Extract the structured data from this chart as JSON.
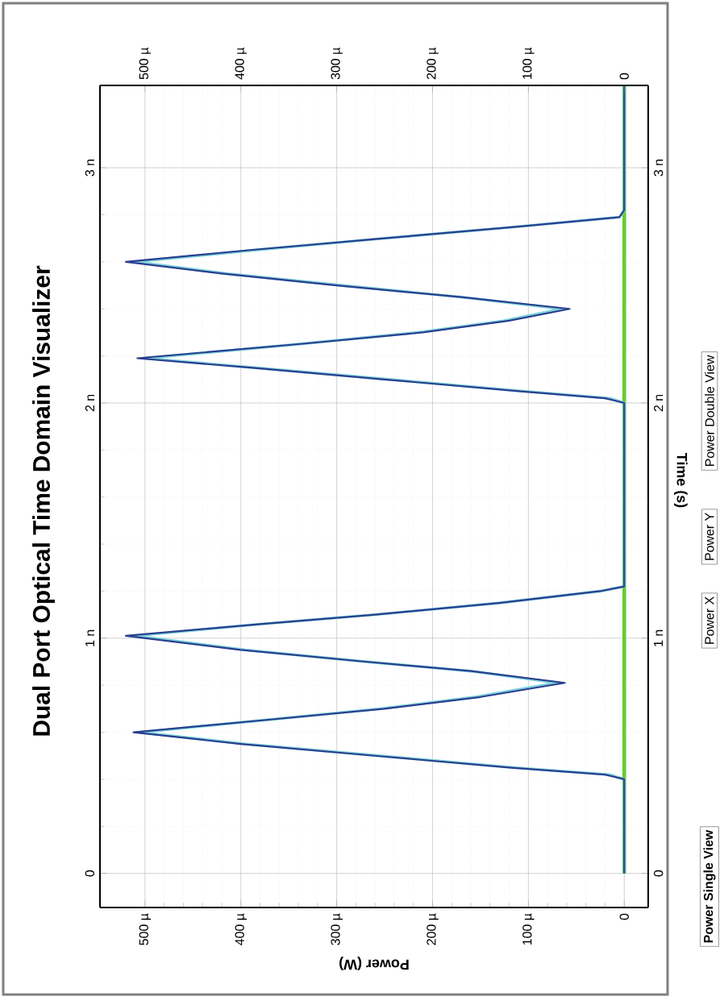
{
  "chart_data": {
    "type": "line",
    "title": "Dual Port Optical Time Domain Visualizer",
    "xlabel": "Power (W)",
    "y2label": "Time (s)",
    "xlim": [
      547,
      -25
    ],
    "xticks": [
      {
        "value": 0,
        "label": "0"
      },
      {
        "value": 100,
        "label": "100 µ"
      },
      {
        "value": 200,
        "label": "200 µ"
      },
      {
        "value": 300,
        "label": "300 µ"
      },
      {
        "value": 400,
        "label": "400 µ"
      },
      {
        "value": 500,
        "label": "500 µ"
      }
    ],
    "x2lim": [
      547,
      -25
    ],
    "x2ticks": [
      {
        "value": 0,
        "label": "0"
      },
      {
        "value": 100,
        "label": "100 µ"
      },
      {
        "value": 200,
        "label": "200 µ"
      },
      {
        "value": 300,
        "label": "300 µ"
      },
      {
        "value": 400,
        "label": "400 µ"
      },
      {
        "value": 500,
        "label": "500 µ"
      }
    ],
    "ylim": [
      -0.145,
      3.35
    ],
    "yticks": [
      {
        "value": 0,
        "label": "0"
      },
      {
        "value": 1,
        "label": "1 n"
      },
      {
        "value": 2,
        "label": "2 n"
      },
      {
        "value": 3,
        "label": "3 n"
      }
    ],
    "y2lim": [
      -0.145,
      3.35
    ],
    "y2ticks": [
      {
        "value": 0,
        "label": "0"
      },
      {
        "value": 1,
        "label": "1 n"
      },
      {
        "value": 2,
        "label": "2 n"
      },
      {
        "value": 3,
        "label": "3 n"
      }
    ],
    "grid": true,
    "annotations": [
      "Power Single View",
      "Power X",
      "Power Y",
      "Power Double View"
    ],
    "series": [
      {
        "color": "#66cc33",
        "values": [
          0,
          3.35
        ],
        "x": [
          0,
          0
        ]
      },
      {
        "color": "#7fd4dc",
        "values": [
          0,
          0.4,
          0.42,
          0.45,
          0.5,
          0.55,
          0.6,
          0.65,
          0.7,
          0.75,
          0.81,
          0.86,
          0.9,
          0.95,
          1.01,
          1.06,
          1.1,
          1.15,
          1.2,
          1.22,
          2.0,
          2.02,
          2.05,
          2.1,
          2.15,
          2.19,
          2.25,
          2.3,
          2.35,
          2.4,
          2.45,
          2.5,
          2.55,
          2.6,
          2.65,
          2.7,
          2.75,
          2.79,
          2.82,
          3.35
        ],
        "x": [
          0,
          0,
          15,
          115,
          255,
          395,
          505,
          380,
          255,
          155,
          70,
          160,
          270,
          395,
          510,
          380,
          260,
          130,
          25,
          0,
          0,
          15,
          105,
          245,
          385,
          500,
          340,
          215,
          125,
          65,
          170,
          295,
          415,
          510,
          385,
          250,
          110,
          5,
          0,
          0
        ]
      },
      {
        "color": "#2a3f8f",
        "values": [
          0,
          0.4,
          0.42,
          0.45,
          0.5,
          0.55,
          0.6,
          0.65,
          0.7,
          0.75,
          0.81,
          0.86,
          0.9,
          0.95,
          1.01,
          1.06,
          1.1,
          1.15,
          1.2,
          1.22,
          2.0,
          2.02,
          2.05,
          2.1,
          2.15,
          2.19,
          2.25,
          2.3,
          2.35,
          2.4,
          2.45,
          2.5,
          2.55,
          2.6,
          2.65,
          2.7,
          2.75,
          2.79,
          2.82,
          3.35
        ],
        "x": [
          0,
          0,
          20,
          120,
          260,
          400,
          512,
          380,
          250,
          150,
          62,
          160,
          270,
          400,
          520,
          380,
          260,
          130,
          25,
          0,
          0,
          20,
          110,
          250,
          390,
          508,
          340,
          210,
          120,
          57,
          170,
          300,
          420,
          520,
          390,
          250,
          110,
          5,
          0,
          0
        ]
      }
    ]
  }
}
